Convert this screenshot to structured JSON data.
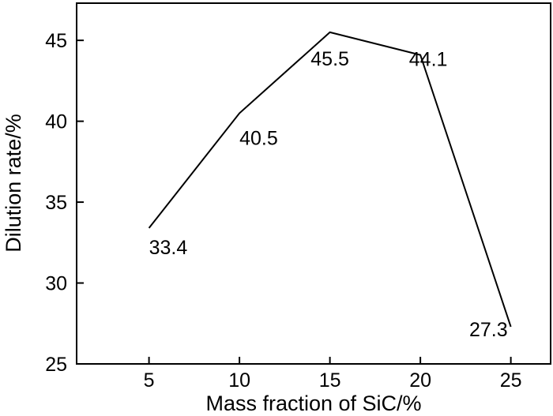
{
  "chart_data": {
    "type": "line",
    "title": "",
    "xlabel": "Mass fraction of SiC/%",
    "ylabel": "Dilution rate/%",
    "x": [
      5,
      10,
      15,
      20,
      25
    ],
    "series": [
      {
        "values": [
          33.4,
          40.5,
          45.5,
          44.1,
          27.3
        ]
      }
    ],
    "data_labels": [
      "33.4",
      "40.5",
      "45.5",
      "44.1",
      "27.3"
    ],
    "xticks": [
      5,
      10,
      15,
      20,
      25
    ],
    "yticks": [
      25,
      30,
      35,
      40,
      45
    ],
    "xlim": [
      1,
      27.2
    ],
    "ylim": [
      25,
      47.3
    ],
    "grid": false,
    "legend": "none",
    "colors": {
      "line": "#000000",
      "axes": "#000000",
      "background": "#ffffff"
    }
  }
}
